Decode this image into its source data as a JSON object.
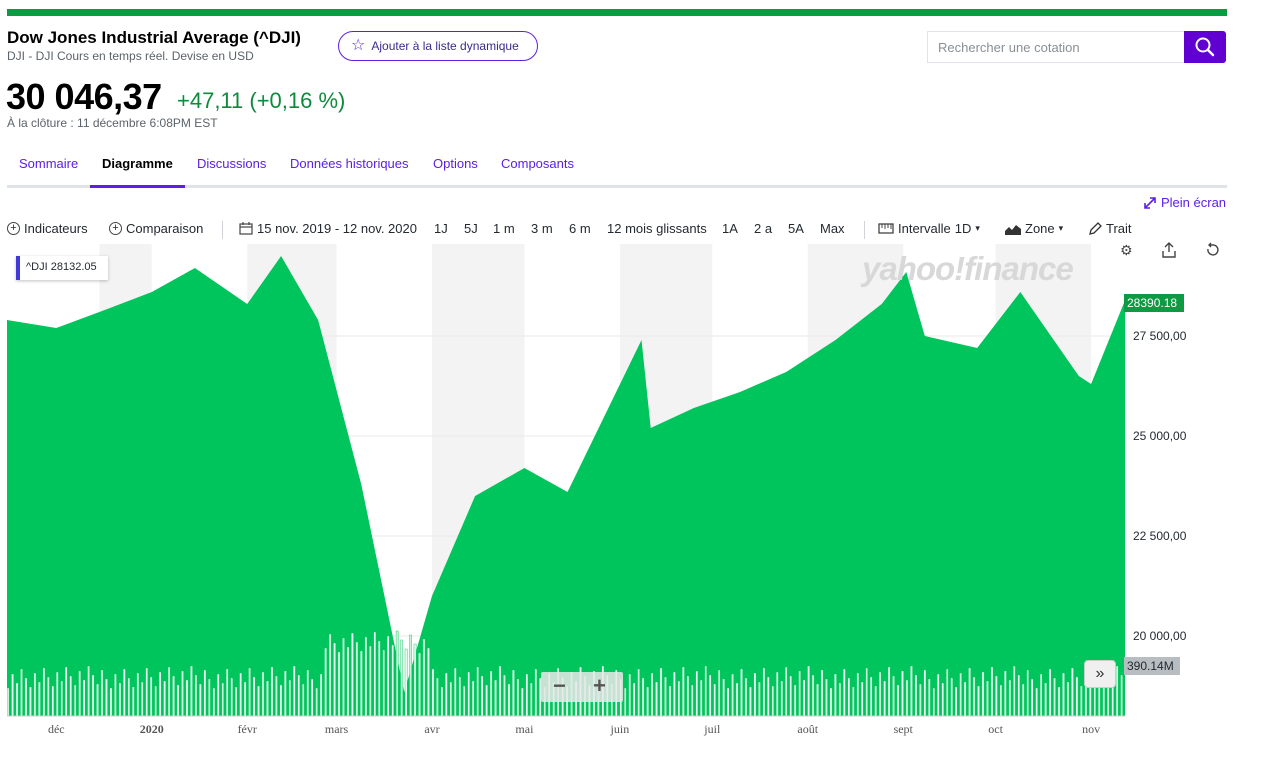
{
  "header": {
    "title": "Dow Jones Industrial Average (^DJI)",
    "subtitle": "DJI - DJI Cours en temps réel. Devise en USD",
    "watchlist_label": "Ajouter à la liste dynamique",
    "search_placeholder": "Rechercher une cotation"
  },
  "quote": {
    "price": "30 046,37",
    "change": "+47,11 (+0,16 %)",
    "close_time": "À la clôture : 11 décembre 6:08PM EST"
  },
  "tabs": [
    {
      "label": "Sommaire"
    },
    {
      "label": "Diagramme"
    },
    {
      "label": "Discussions"
    },
    {
      "label": "Données historiques"
    },
    {
      "label": "Options"
    },
    {
      "label": "Composants"
    }
  ],
  "fullscreen_label": "Plein écran",
  "toolbar": {
    "indicators": "Indicateurs",
    "comparison": "Comparaison",
    "date_range": "15 nov. 2019 - 12 nov. 2020",
    "ranges": [
      "1J",
      "5J",
      "1 m",
      "3 m",
      "6 m",
      "12 mois glissants",
      "1A",
      "2 a",
      "5A",
      "Max"
    ],
    "interval_label": "Intervalle",
    "interval_value": "1D",
    "chart_type": "Zone",
    "draw": "Trait"
  },
  "chart": {
    "legend_symbol": "^DJI",
    "legend_value": "28132.05",
    "watermark": "yahoo!finance",
    "last_price_tag": "28390.18",
    "volume_tag": "390.14M",
    "y_ticks": [
      "27 500,00",
      "25 000,00",
      "22 500,00",
      "20 000,00"
    ],
    "x_ticks": [
      "déc",
      "2020",
      "févr",
      "mars",
      "avr",
      "mai",
      "juin",
      "juil",
      "août",
      "sept",
      "oct",
      "nov"
    ]
  },
  "colors": {
    "area": "#00c45c",
    "accent": "#5b1fe6",
    "positive": "#0d8a3c"
  },
  "chart_data": {
    "type": "area",
    "title": "",
    "ylim": [
      18000,
      29800
    ],
    "x": [
      "2019-11-15",
      "2019-12-01",
      "2019-12-15",
      "2020-01-01",
      "2020-01-15",
      "2020-02-01",
      "2020-02-12",
      "2020-02-24",
      "2020-03-09",
      "2020-03-23",
      "2020-04-01",
      "2020-04-15",
      "2020-05-01",
      "2020-05-15",
      "2020-06-08",
      "2020-06-11",
      "2020-06-25",
      "2020-07-10",
      "2020-07-25",
      "2020-08-10",
      "2020-08-25",
      "2020-09-02",
      "2020-09-08",
      "2020-09-25",
      "2020-10-09",
      "2020-10-28",
      "2020-11-01",
      "2020-11-12"
    ],
    "values": [
      27900,
      27700,
      28100,
      28600,
      29200,
      28300,
      29500,
      27900,
      23800,
      18600,
      21000,
      23500,
      24200,
      23600,
      27400,
      25200,
      25700,
      26100,
      26600,
      27400,
      28300,
      29100,
      27500,
      27200,
      28600,
      26500,
      26300,
      28390
    ],
    "volume": {
      "unit": "M",
      "last": 390.14
    }
  }
}
